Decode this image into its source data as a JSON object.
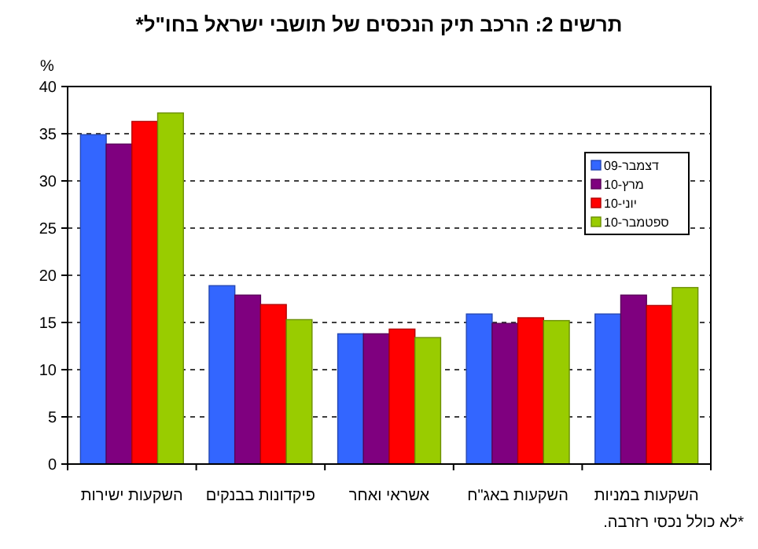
{
  "chart_data": {
    "type": "bar",
    "title": "תרשים 2: הרכב תיק הנכסים של תושבי ישראל בחו\"ל*",
    "ylabel": "%",
    "annotations": [
      "*לא כולל נכסי רזרבה."
    ],
    "categories": [
      "השקעות ישירות",
      "פיקדונות בבנקים",
      "אשראי ואחר",
      "השקעות באג\"ח",
      "השקעות במניות"
    ],
    "series": [
      {
        "name": "דצמבר-09",
        "color": "#3366ff",
        "values": [
          34.9,
          18.9,
          13.8,
          15.9,
          15.9
        ]
      },
      {
        "name": "מרץ-10",
        "color": "#7f007f",
        "values": [
          33.9,
          17.9,
          13.8,
          14.9,
          17.9
        ]
      },
      {
        "name": "יוני-10",
        "color": "#ff0000",
        "values": [
          36.3,
          16.9,
          14.3,
          15.5,
          16.8
        ]
      },
      {
        "name": "ספטמבר-10",
        "color": "#99cc00",
        "values": [
          37.2,
          15.3,
          13.4,
          15.2,
          18.7
        ]
      }
    ],
    "ylim": [
      0,
      40
    ],
    "yticks": [
      0,
      5,
      10,
      15,
      20,
      25,
      30,
      35,
      40
    ],
    "grid": "y",
    "legend": "top right"
  }
}
